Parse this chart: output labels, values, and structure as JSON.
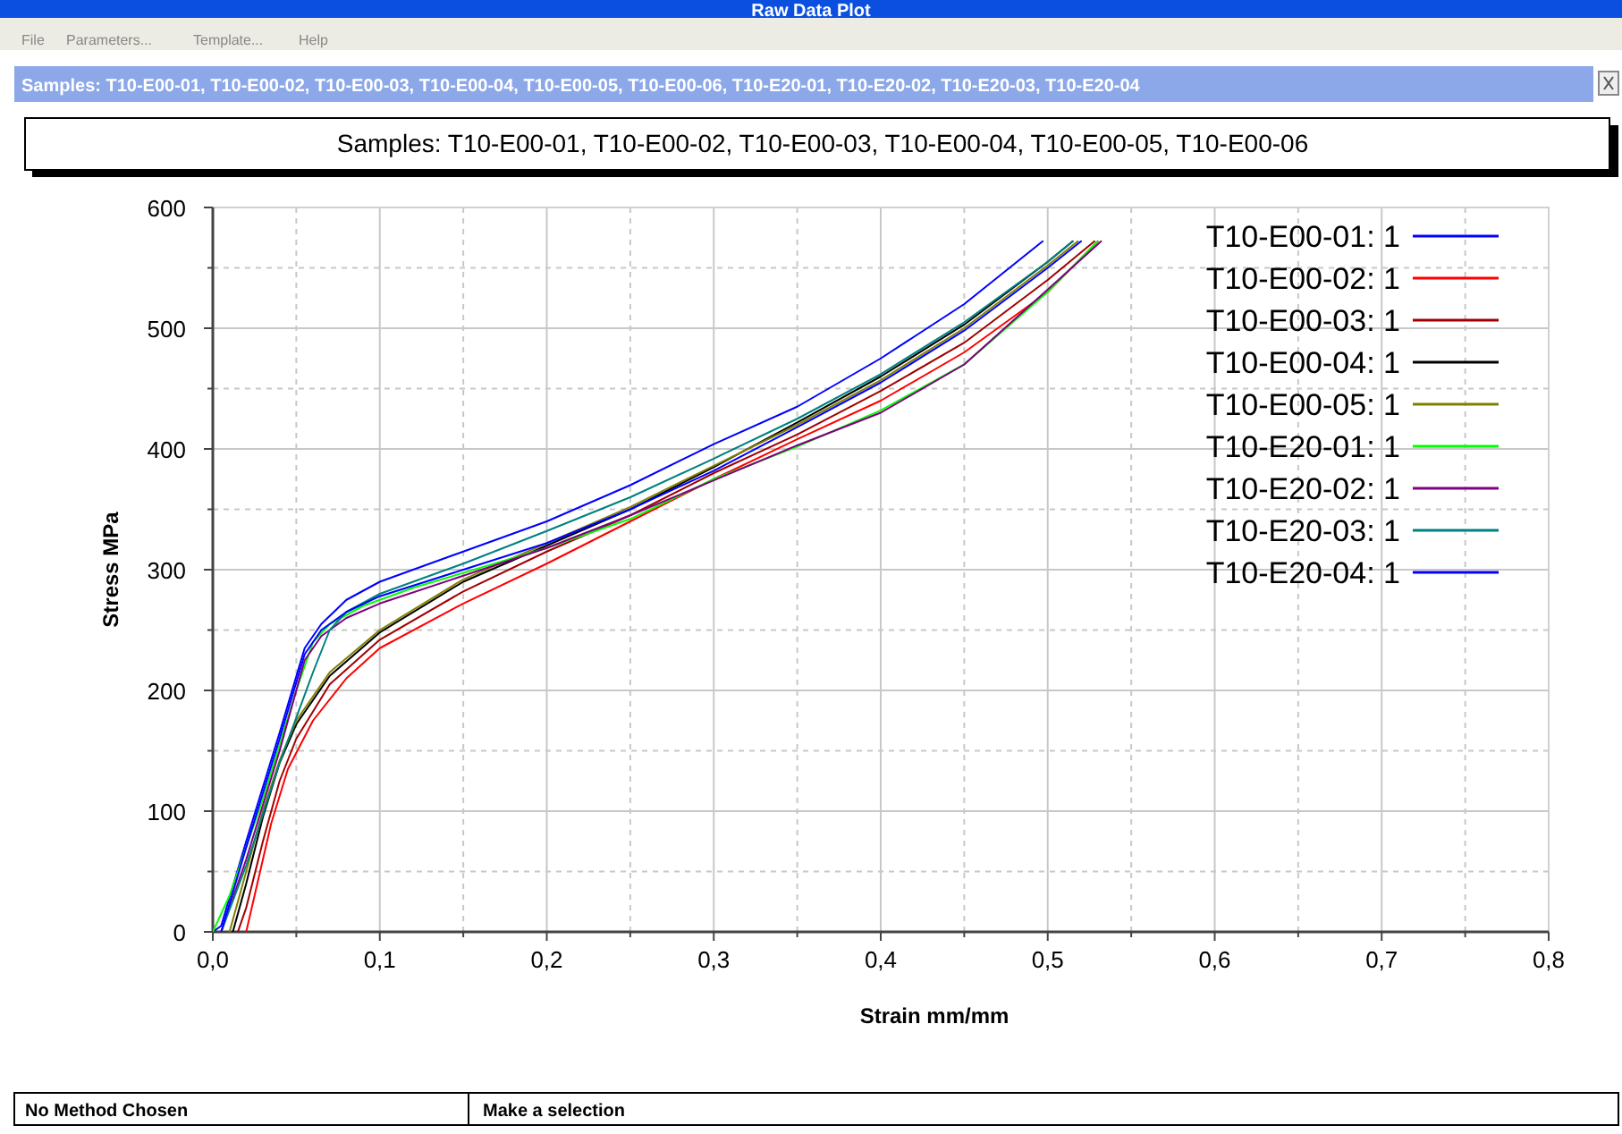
{
  "chart_data": {
    "type": "line",
    "title": "Samples: T10-E00-01, T10-E00-02, T10-E00-03, T10-E00-04, T10-E00-05, T10-E00-06",
    "xlabel": "Strain mm/mm",
    "ylabel": "Stress MPa",
    "annotations": [
      "Raw Data Plot",
      "File",
      "Parameters...",
      "Template...",
      "Help",
      "Samples: T10-E00-01, T10-E00-02, T10-E00-03, T10-E00-04, T10-E00-05, T10-E00-06, T10-E20-01, T10-E20-02, T10-E20-03, T10-E20-04",
      "No Method Chosen",
      "Make a selection"
    ],
    "xlim": [
      0,
      0.8
    ],
    "ylim": [
      0,
      600
    ],
    "xticks": [
      {
        "value": 0,
        "label": "0,0"
      },
      {
        "value": 0.05,
        "label": null
      },
      {
        "value": 0.1,
        "label": "0,1"
      },
      {
        "value": 0.15,
        "label": null
      },
      {
        "value": 0.2,
        "label": "0,2"
      },
      {
        "value": 0.25,
        "label": null
      },
      {
        "value": 0.3,
        "label": "0,3"
      },
      {
        "value": 0.35,
        "label": null
      },
      {
        "value": 0.4,
        "label": "0,4"
      },
      {
        "value": 0.45,
        "label": null
      },
      {
        "value": 0.5,
        "label": "0,5"
      },
      {
        "value": 0.55,
        "label": null
      },
      {
        "value": 0.6,
        "label": "0,6"
      },
      {
        "value": 0.65,
        "label": null
      },
      {
        "value": 0.7,
        "label": "0,7"
      },
      {
        "value": 0.75,
        "label": null
      },
      {
        "value": 0.8,
        "label": "0,8"
      }
    ],
    "yticks": [
      0,
      {
        "value": 50,
        "label": null
      },
      100,
      {
        "value": 150,
        "label": null
      },
      200,
      {
        "value": 250,
        "label": null
      },
      300,
      {
        "value": 350,
        "label": null
      },
      400,
      {
        "value": 450,
        "label": null
      },
      500,
      {
        "value": 550,
        "label": null
      },
      600
    ],
    "grid": true,
    "legend": "top right",
    "line_style": "solid",
    "series": [
      {
        "name": "T10-E00-01: 1",
        "color": "#0000ff",
        "x": [
          0,
          0.005,
          0.02,
          0.04,
          0.055,
          0.065,
          0.08,
          0.1,
          0.15,
          0.2,
          0.25,
          0.3,
          0.35,
          0.4,
          0.45,
          0.497
        ],
        "values": [
          0,
          5,
          75,
          165,
          235,
          255,
          275,
          290,
          315,
          340,
          370,
          404,
          435,
          475,
          520,
          572
        ]
      },
      {
        "name": "T10-E00-02: 1",
        "color": "#ff0000",
        "x": [
          0.02,
          0.025,
          0.035,
          0.045,
          0.06,
          0.08,
          0.1,
          0.15,
          0.2,
          0.25,
          0.3,
          0.35,
          0.4,
          0.45,
          0.5,
          0.53
        ],
        "values": [
          0,
          30,
          90,
          135,
          175,
          210,
          235,
          272,
          305,
          340,
          375,
          408,
          440,
          480,
          530,
          572
        ]
      },
      {
        "name": "T10-E00-03: 1",
        "color": "#a00000",
        "x": [
          0.015,
          0.02,
          0.03,
          0.04,
          0.05,
          0.07,
          0.1,
          0.15,
          0.2,
          0.25,
          0.3,
          0.35,
          0.4,
          0.45,
          0.5,
          0.528
        ],
        "values": [
          0,
          20,
          75,
          125,
          160,
          205,
          242,
          282,
          315,
          345,
          380,
          412,
          448,
          488,
          540,
          572
        ]
      },
      {
        "name": "T10-E00-04: 1",
        "color": "#000000",
        "x": [
          0.012,
          0.02,
          0.03,
          0.04,
          0.05,
          0.07,
          0.1,
          0.15,
          0.2,
          0.25,
          0.3,
          0.35,
          0.4,
          0.45,
          0.5,
          0.515
        ],
        "values": [
          0,
          40,
          95,
          140,
          172,
          212,
          248,
          290,
          320,
          350,
          385,
          422,
          460,
          503,
          555,
          572
        ]
      },
      {
        "name": "T10-E00-05: 1",
        "color": "#808000",
        "x": [
          0.01,
          0.02,
          0.03,
          0.04,
          0.05,
          0.07,
          0.1,
          0.15,
          0.2,
          0.25,
          0.3,
          0.35,
          0.4,
          0.45,
          0.5,
          0.518
        ],
        "values": [
          0,
          50,
          100,
          142,
          175,
          215,
          250,
          292,
          322,
          352,
          386,
          420,
          457,
          500,
          552,
          572
        ]
      },
      {
        "name": "T10-E20-01: 1",
        "color": "#00ff00",
        "x": [
          0,
          0.01,
          0.03,
          0.05,
          0.06,
          0.07,
          0.09,
          0.12,
          0.2,
          0.25,
          0.3,
          0.35,
          0.4,
          0.45,
          0.5,
          0.53
        ],
        "values": [
          0,
          30,
          110,
          200,
          240,
          255,
          270,
          285,
          318,
          342,
          375,
          402,
          432,
          470,
          530,
          572
        ]
      },
      {
        "name": "T10-E20-02: 1",
        "color": "#800080",
        "x": [
          0.005,
          0.02,
          0.04,
          0.055,
          0.065,
          0.08,
          0.1,
          0.15,
          0.2,
          0.25,
          0.3,
          0.35,
          0.4,
          0.45,
          0.5,
          0.532
        ],
        "values": [
          0,
          60,
          150,
          225,
          245,
          260,
          272,
          295,
          318,
          345,
          374,
          403,
          430,
          470,
          532,
          572
        ]
      },
      {
        "name": "T10-E20-03: 1",
        "color": "#008080",
        "x": [
          0.005,
          0.02,
          0.04,
          0.06,
          0.07,
          0.08,
          0.1,
          0.15,
          0.2,
          0.25,
          0.3,
          0.35,
          0.4,
          0.45,
          0.5,
          0.515
        ],
        "values": [
          0,
          55,
          140,
          215,
          250,
          265,
          280,
          305,
          332,
          360,
          392,
          425,
          462,
          505,
          555,
          572
        ]
      },
      {
        "name": "T10-E20-04: 1",
        "color": "#0000ff",
        "x": [
          0.005,
          0.02,
          0.04,
          0.055,
          0.065,
          0.08,
          0.1,
          0.15,
          0.2,
          0.25,
          0.3,
          0.35,
          0.4,
          0.45,
          0.5,
          0.52
        ],
        "values": [
          0,
          70,
          160,
          230,
          250,
          265,
          278,
          300,
          322,
          350,
          382,
          418,
          455,
          498,
          550,
          572
        ]
      }
    ]
  }
}
